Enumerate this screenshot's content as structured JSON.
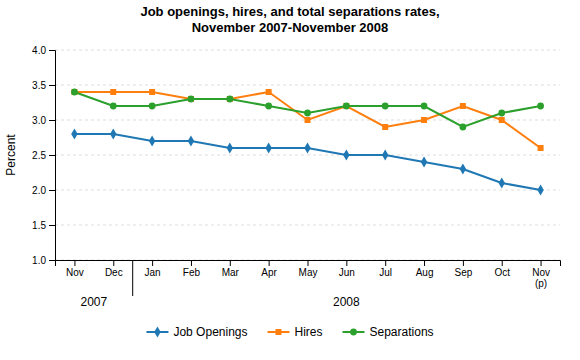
{
  "chart_data": {
    "type": "line",
    "title": "Job openings, hires, and total separations rates,\nNovember 2007-November 2008",
    "y_label": "Percent",
    "categories": [
      "Nov",
      "Dec",
      "Jan",
      "Feb",
      "Mar",
      "Apr",
      "May",
      "Jun",
      "Jul",
      "Aug",
      "Sep",
      "Oct",
      "Nov\n(p)"
    ],
    "annotations": [
      "2007",
      "2008"
    ],
    "ylim": [
      1.0,
      4.0
    ],
    "yticks": [
      {
        "value": 1.0,
        "label": "1.0"
      },
      1.5,
      {
        "value": 2.0,
        "label": "2.0"
      },
      2.5,
      {
        "value": 3.0,
        "label": "3.0"
      },
      3.5,
      {
        "value": 4.0,
        "label": "4.0"
      }
    ],
    "grid": true,
    "legend": "bottom",
    "series": [
      {
        "name": "Job Openings",
        "marker": "diamond",
        "values": [
          2.8,
          2.8,
          2.7,
          2.7,
          2.6,
          2.6,
          2.6,
          2.5,
          2.5,
          2.4,
          2.3,
          2.1,
          2.0
        ]
      },
      {
        "name": "Hires",
        "marker": "square",
        "values": [
          3.4,
          3.4,
          3.4,
          3.3,
          3.3,
          3.4,
          3.0,
          3.2,
          2.9,
          3.0,
          3.2,
          3.0,
          2.6
        ]
      },
      {
        "name": "Separations",
        "marker": "circle",
        "values": [
          3.4,
          3.2,
          3.2,
          3.3,
          3.3,
          3.2,
          3.1,
          3.2,
          3.2,
          3.2,
          2.9,
          3.1,
          3.2
        ]
      }
    ]
  }
}
